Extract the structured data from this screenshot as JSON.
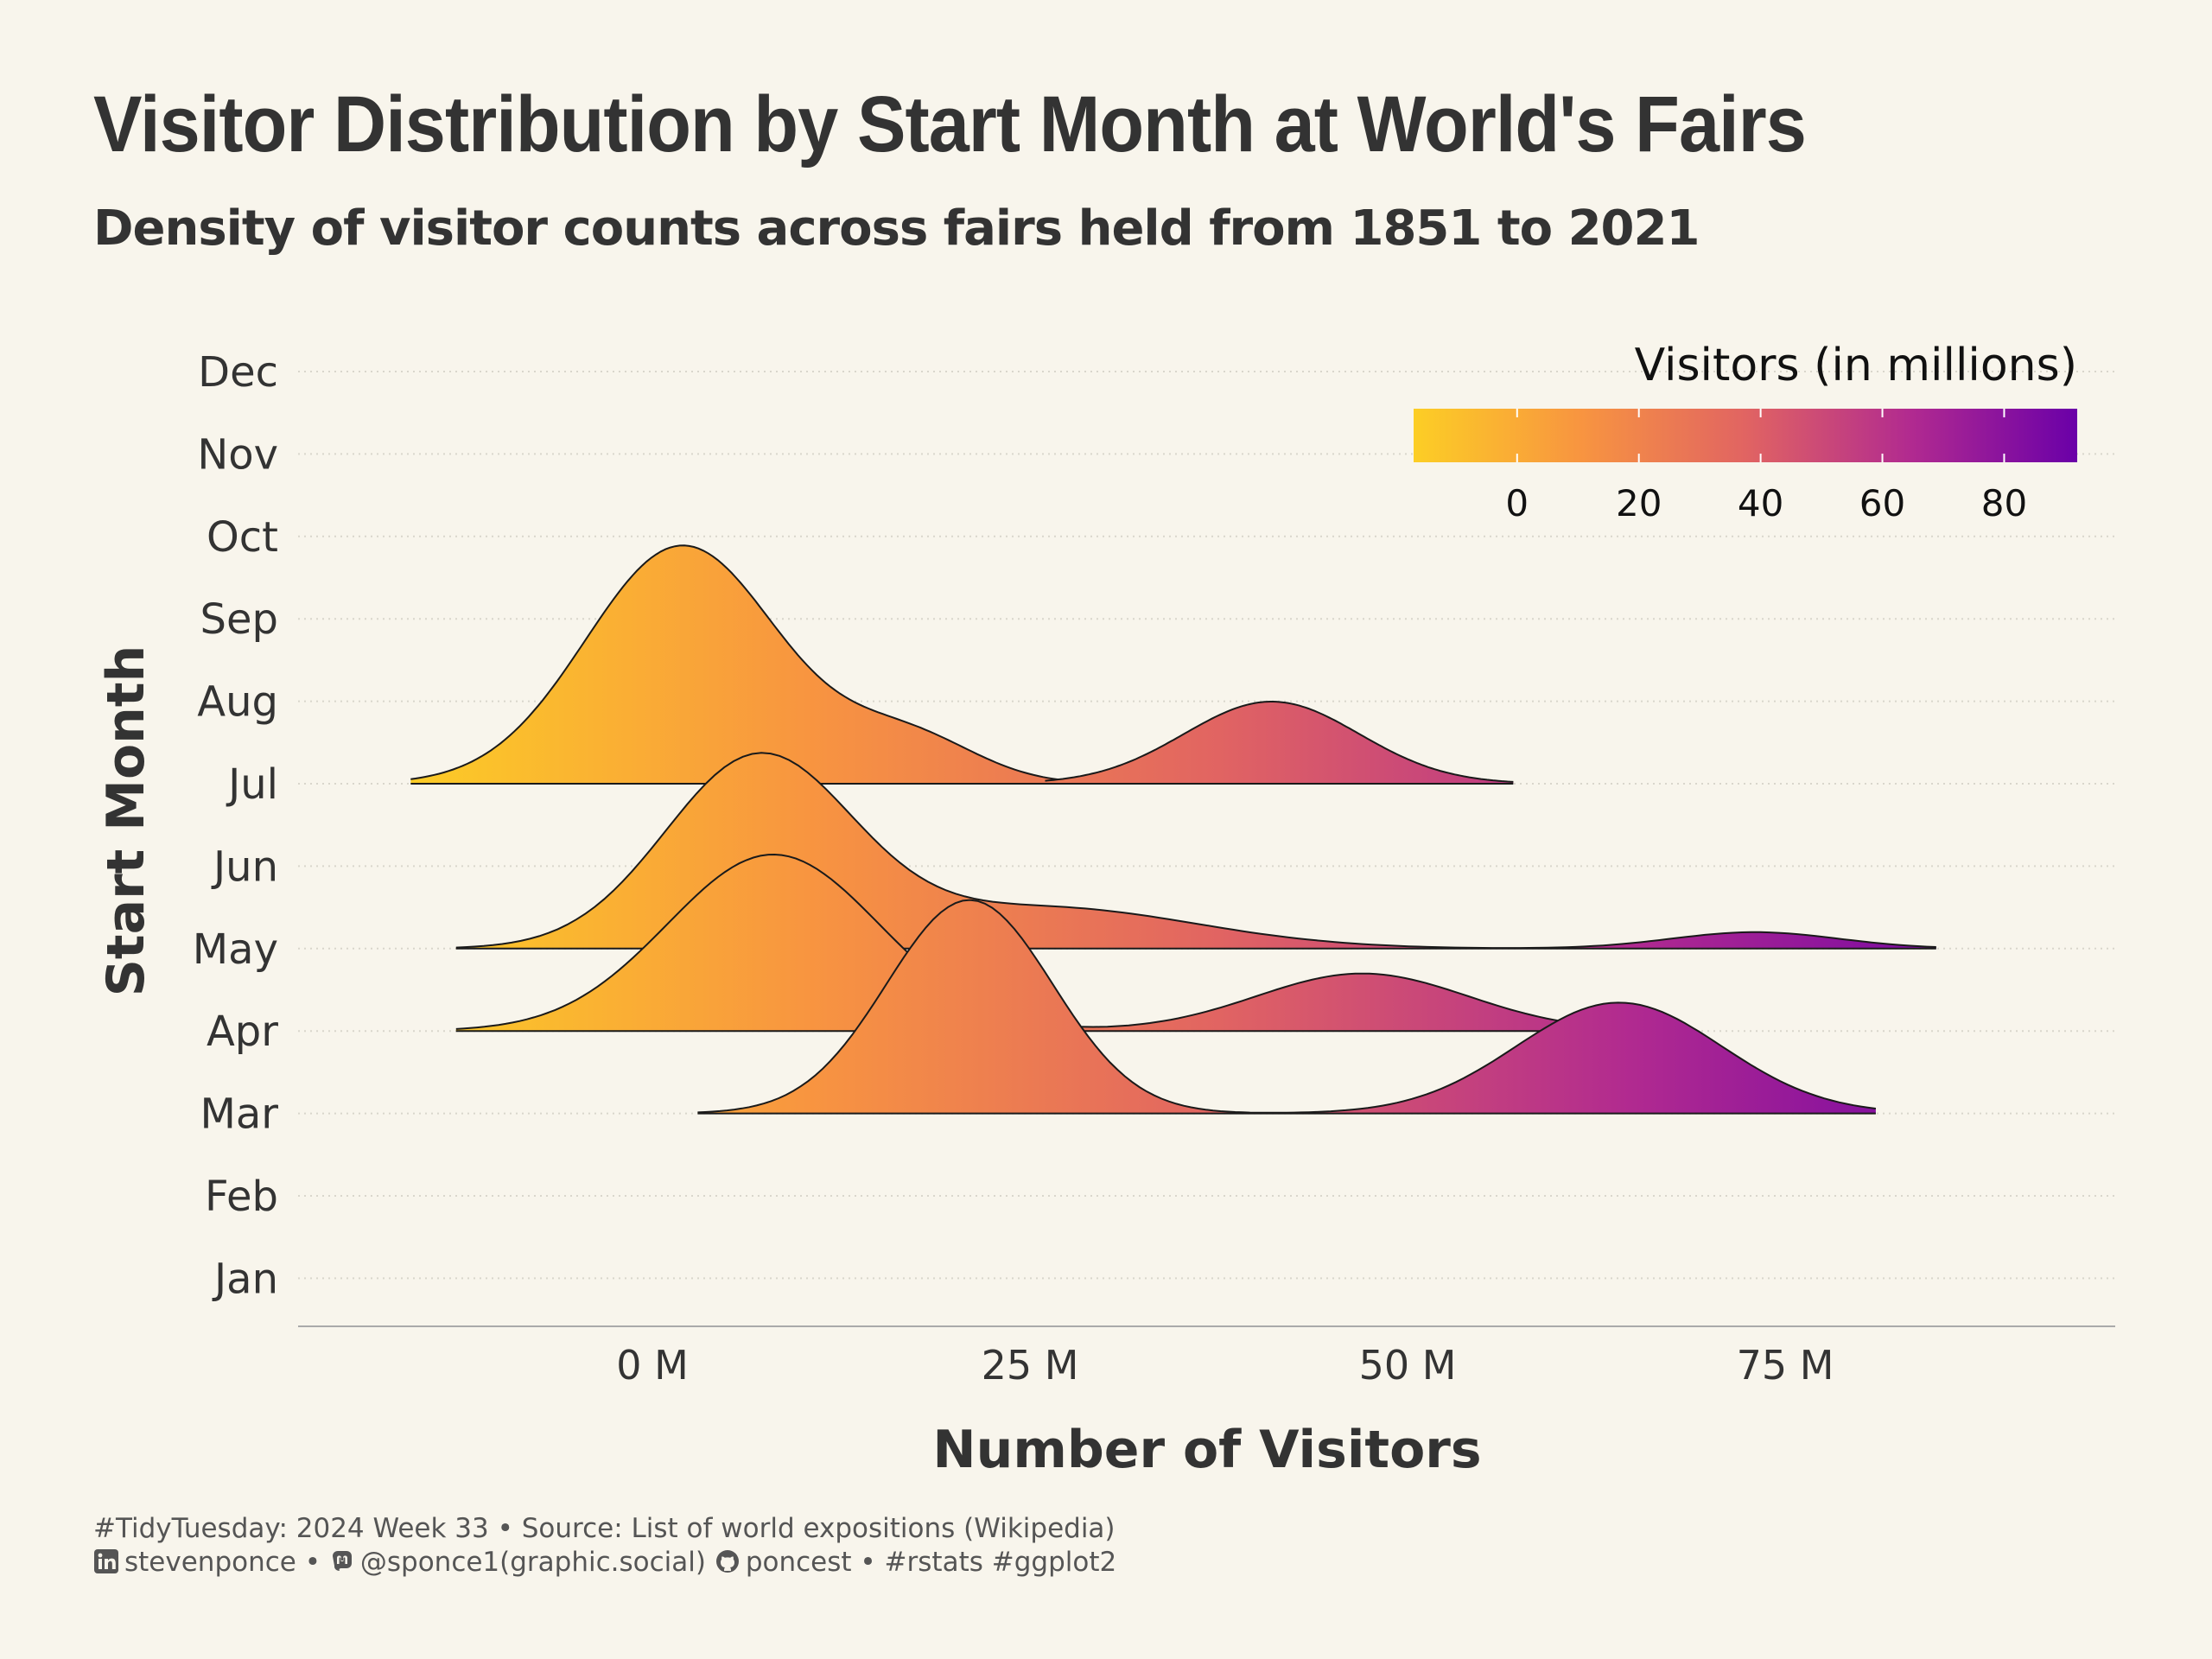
{
  "title": "Visitor Distribution by Start Month at World's Fairs",
  "subtitle": "Density of visitor counts across fairs held from 1851 to 2021",
  "caption": {
    "line1": "#TidyTuesday: 2024 Week 33 • Source: List of world expositions (Wikipedia)",
    "linkedin": "stevenponce",
    "sep1": "•",
    "mastodon": "@sponce1(graphic.social)",
    "github": "poncest",
    "tail": "• #rstats #ggplot2"
  },
  "chart_data": {
    "type": "ridgeline",
    "title": "Visitor Distribution by Start Month at World's Fairs",
    "subtitle": "Density of visitor counts across fairs held from 1851 to 2021",
    "xlabel": "Number of Visitors",
    "ylabel": "Start Month",
    "xlim": [
      -23,
      97
    ],
    "x_ticks": [
      0,
      25,
      50,
      75
    ],
    "x_tick_labels": [
      "0 M",
      "25 M",
      "50 M",
      "75 M"
    ],
    "y_categories": [
      "Jan",
      "Feb",
      "Mar",
      "Apr",
      "May",
      "Jun",
      "Jul",
      "Aug",
      "Sep",
      "Oct",
      "Nov",
      "Dec"
    ],
    "grid": "horizontal dotted",
    "legend": {
      "title": "Visitors (in millions)",
      "position": "top-right",
      "range": [
        -17,
        92
      ],
      "ticks": [
        0,
        20,
        40,
        60,
        80
      ],
      "palette": [
        "#fcce25",
        "#f89540",
        "#e16462",
        "#b12a90",
        "#6a00a8"
      ]
    },
    "ridges": [
      {
        "month": "Mar",
        "components": [
          {
            "from": 3,
            "to": 39,
            "mean": 21,
            "sd": 5.5,
            "peak": 2.6
          },
          {
            "from": 48,
            "to": 81,
            "mean": 64,
            "sd": 6.8,
            "peak": 1.35
          }
        ]
      },
      {
        "month": "Apr",
        "components": [
          {
            "from": -13,
            "to": 62,
            "mean": 8,
            "sd": 7.0,
            "peak": 2.15
          },
          {
            "from": -13,
            "to": 62,
            "mean": 47,
            "sd": 7.0,
            "peak": 0.7
          }
        ]
      },
      {
        "month": "May",
        "components": [
          {
            "from": -13,
            "to": 51,
            "mean": 7,
            "sd": 6.2,
            "peak": 2.3
          },
          {
            "from": -13,
            "to": 51,
            "mean": 26,
            "sd": 10.0,
            "peak": 0.5
          },
          {
            "from": 62,
            "to": 85,
            "mean": 73,
            "sd": 5.5,
            "peak": 0.2
          }
        ]
      },
      {
        "month": "Jul",
        "components": [
          {
            "from": -16,
            "to": 34,
            "mean": 2,
            "sd": 6.4,
            "peak": 2.9
          },
          {
            "from": -16,
            "to": 34,
            "mean": 17,
            "sd": 4.5,
            "peak": 0.55
          }
        ]
      },
      {
        "month": "Jul",
        "components": [
          {
            "from": 26,
            "to": 57,
            "mean": 41,
            "sd": 5.8,
            "peak": 1.0
          }
        ]
      }
    ]
  },
  "colors": {
    "background": "#f8f5ec",
    "text": "#333333",
    "grid": "#d9d6cc",
    "outline": "#1a1a1a"
  }
}
